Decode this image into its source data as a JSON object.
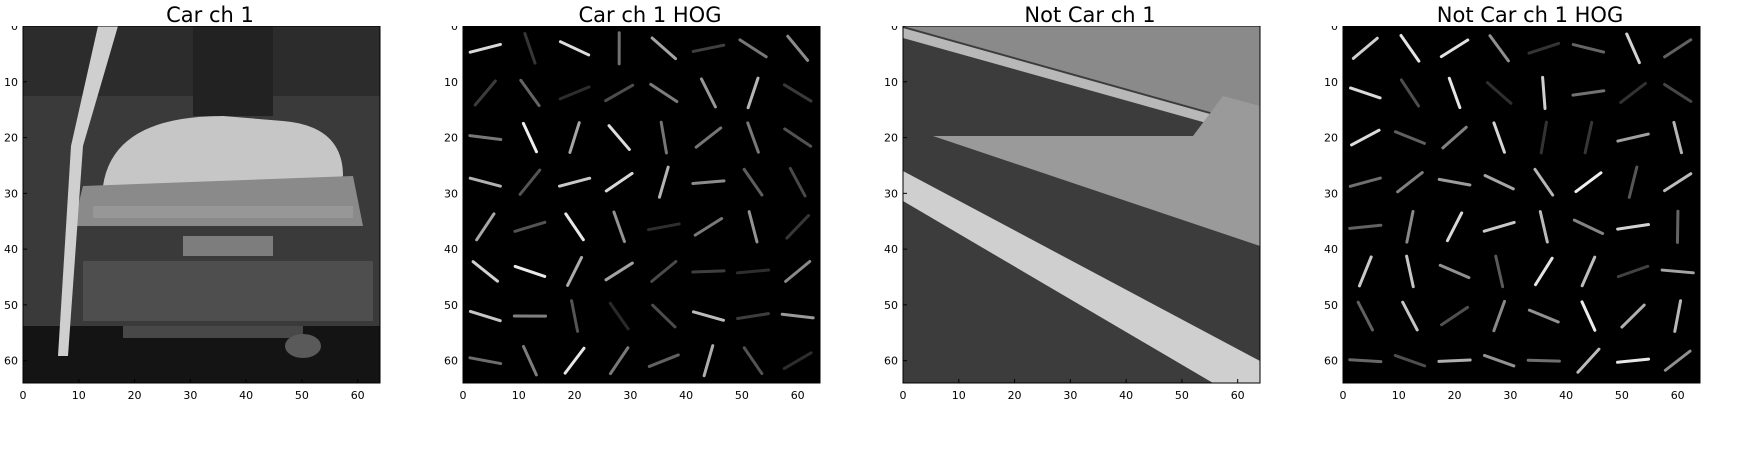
{
  "panels": [
    {
      "id": "car-ch1",
      "title": "Car ch 1",
      "kind": "image",
      "image_content": "car"
    },
    {
      "id": "car-ch1-hog",
      "title": "Car ch 1 HOG",
      "kind": "hog",
      "image_content": "car-hog"
    },
    {
      "id": "notcar-ch1",
      "title": "Not Car ch 1",
      "kind": "image",
      "image_content": "road"
    },
    {
      "id": "notcar-ch1-hog",
      "title": "Not Car ch 1 HOG",
      "kind": "hog",
      "image_content": "road-hog"
    }
  ],
  "axes": {
    "xlim": [
      0,
      64
    ],
    "ylim": [
      64,
      0
    ],
    "x_ticks": [
      0,
      10,
      20,
      30,
      40,
      50,
      60
    ],
    "y_ticks": [
      0,
      10,
      20,
      30,
      40,
      50,
      60
    ],
    "tick_labels_x": [
      "0",
      "10",
      "20",
      "30",
      "40",
      "50",
      "60"
    ],
    "tick_labels_y": [
      "0",
      "10",
      "20",
      "30",
      "40",
      "50",
      "60"
    ]
  },
  "colors": {
    "background": "#ffffff",
    "frame": "#000000",
    "hog_background": "#000000"
  }
}
